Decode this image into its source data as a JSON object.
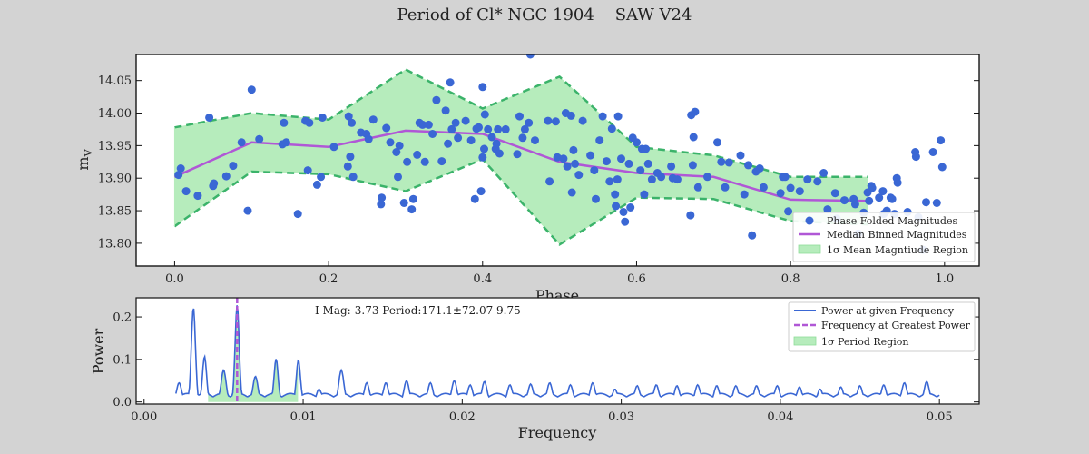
{
  "figure": {
    "title": "Period of Cl* NGC 1904    SAW V24",
    "background": "#d3d3d3"
  },
  "chart_data": [
    {
      "type": "scatter",
      "xlabel": "Phase",
      "ylabel": "m_V",
      "xlim": [
        -0.05,
        1.045
      ],
      "ylim": [
        13.765,
        14.09
      ],
      "xticks": [
        0.0,
        0.2,
        0.4,
        0.6,
        0.8,
        1.0
      ],
      "yticks": [
        13.8,
        13.85,
        13.9,
        13.95,
        14.0,
        14.05
      ],
      "legend_position": "lower-right",
      "legend": [
        "Phase Folded Magnitudes",
        "Median Binned Magnitudes",
        "1σ Mean Magntiude Region"
      ],
      "colors": {
        "points": "#3a67d4",
        "median": "#b057d6",
        "band_fill": "#b6ecbc",
        "band_edge": "#3bb36a"
      },
      "points": [
        [
          0.005,
          13.905
        ],
        [
          0.008,
          13.915
        ],
        [
          0.015,
          13.88
        ],
        [
          0.03,
          13.873
        ],
        [
          0.045,
          13.993
        ],
        [
          0.05,
          13.888
        ],
        [
          0.051,
          13.892
        ],
        [
          0.067,
          13.903
        ],
        [
          0.076,
          13.919
        ],
        [
          0.087,
          13.955
        ],
        [
          0.095,
          13.85
        ],
        [
          0.1,
          14.036
        ],
        [
          0.11,
          13.96
        ],
        [
          0.14,
          13.952
        ],
        [
          0.142,
          13.985
        ],
        [
          0.145,
          13.955
        ],
        [
          0.16,
          13.845
        ],
        [
          0.17,
          13.988
        ],
        [
          0.173,
          13.912
        ],
        [
          0.175,
          13.985
        ],
        [
          0.185,
          13.89
        ],
        [
          0.19,
          13.902
        ],
        [
          0.192,
          13.993
        ],
        [
          0.207,
          13.948
        ],
        [
          0.225,
          13.918
        ],
        [
          0.226,
          13.995
        ],
        [
          0.228,
          13.933
        ],
        [
          0.23,
          13.985
        ],
        [
          0.232,
          13.902
        ],
        [
          0.242,
          13.97
        ],
        [
          0.249,
          13.968
        ],
        [
          0.252,
          13.96
        ],
        [
          0.258,
          13.99
        ],
        [
          0.268,
          13.86
        ],
        [
          0.269,
          13.87
        ],
        [
          0.275,
          13.977
        ],
        [
          0.28,
          13.955
        ],
        [
          0.288,
          13.94
        ],
        [
          0.29,
          13.902
        ],
        [
          0.292,
          13.95
        ],
        [
          0.298,
          13.862
        ],
        [
          0.302,
          13.925
        ],
        [
          0.308,
          13.852
        ],
        [
          0.31,
          13.868
        ],
        [
          0.315,
          13.936
        ],
        [
          0.318,
          13.985
        ],
        [
          0.322,
          13.982
        ],
        [
          0.325,
          13.925
        ],
        [
          0.33,
          13.982
        ],
        [
          0.335,
          13.968
        ],
        [
          0.34,
          14.02
        ],
        [
          0.347,
          13.926
        ],
        [
          0.352,
          14.004
        ],
        [
          0.355,
          13.953
        ],
        [
          0.358,
          14.047
        ],
        [
          0.36,
          13.975
        ],
        [
          0.365,
          13.985
        ],
        [
          0.368,
          13.962
        ],
        [
          0.378,
          13.988
        ],
        [
          0.385,
          13.958
        ],
        [
          0.39,
          13.868
        ],
        [
          0.392,
          13.976
        ],
        [
          0.395,
          13.978
        ],
        [
          0.398,
          13.88
        ],
        [
          0.4,
          14.04
        ],
        [
          0.4,
          13.932
        ],
        [
          0.402,
          13.945
        ],
        [
          0.403,
          13.998
        ],
        [
          0.407,
          13.975
        ],
        [
          0.412,
          13.963
        ],
        [
          0.417,
          13.945
        ],
        [
          0.418,
          13.953
        ],
        [
          0.42,
          13.975
        ],
        [
          0.422,
          13.938
        ],
        [
          0.43,
          13.975
        ],
        [
          0.445,
          13.937
        ],
        [
          0.448,
          13.995
        ],
        [
          0.452,
          13.962
        ],
        [
          0.455,
          13.975
        ],
        [
          0.46,
          13.985
        ],
        [
          0.462,
          14.09
        ],
        [
          0.468,
          13.958
        ],
        [
          0.485,
          13.988
        ],
        [
          0.487,
          13.895
        ],
        [
          0.495,
          13.987
        ],
        [
          0.497,
          13.932
        ],
        [
          0.505,
          13.93
        ],
        [
          0.508,
          14.0
        ],
        [
          0.51,
          13.918
        ],
        [
          0.515,
          13.996
        ],
        [
          0.516,
          13.878
        ],
        [
          0.518,
          13.943
        ],
        [
          0.52,
          13.922
        ],
        [
          0.525,
          13.905
        ],
        [
          0.53,
          13.988
        ],
        [
          0.54,
          13.935
        ],
        [
          0.545,
          13.912
        ],
        [
          0.547,
          13.868
        ],
        [
          0.552,
          13.958
        ],
        [
          0.556,
          13.995
        ],
        [
          0.561,
          13.926
        ],
        [
          0.565,
          13.895
        ],
        [
          0.568,
          13.976
        ],
        [
          0.572,
          13.875
        ],
        [
          0.573,
          13.857
        ],
        [
          0.575,
          13.898
        ],
        [
          0.576,
          13.995
        ],
        [
          0.58,
          13.93
        ],
        [
          0.583,
          13.848
        ],
        [
          0.585,
          13.833
        ],
        [
          0.59,
          13.922
        ],
        [
          0.592,
          13.855
        ],
        [
          0.595,
          13.962
        ],
        [
          0.6,
          13.955
        ],
        [
          0.605,
          13.912
        ],
        [
          0.607,
          13.945
        ],
        [
          0.61,
          13.875
        ],
        [
          0.612,
          13.945
        ],
        [
          0.615,
          13.922
        ],
        [
          0.62,
          13.898
        ],
        [
          0.627,
          13.908
        ],
        [
          0.632,
          13.902
        ],
        [
          0.645,
          13.918
        ],
        [
          0.647,
          13.9
        ],
        [
          0.653,
          13.898
        ],
        [
          0.67,
          13.843
        ],
        [
          0.671,
          13.997
        ],
        [
          0.673,
          13.92
        ],
        [
          0.674,
          13.963
        ],
        [
          0.676,
          14.002
        ],
        [
          0.68,
          13.886
        ],
        [
          0.692,
          13.902
        ],
        [
          0.705,
          13.955
        ],
        [
          0.71,
          13.925
        ],
        [
          0.715,
          13.886
        ],
        [
          0.72,
          13.924
        ],
        [
          0.735,
          13.935
        ],
        [
          0.74,
          13.875
        ],
        [
          0.745,
          13.92
        ],
        [
          0.75,
          13.812
        ],
        [
          0.755,
          13.91
        ],
        [
          0.76,
          13.915
        ],
        [
          0.765,
          13.886
        ],
        [
          0.787,
          13.877
        ],
        [
          0.79,
          13.902
        ],
        [
          0.793,
          13.902
        ],
        [
          0.797,
          13.849
        ],
        [
          0.8,
          13.885
        ],
        [
          0.812,
          13.88
        ],
        [
          0.822,
          13.898
        ],
        [
          0.835,
          13.895
        ],
        [
          0.843,
          13.908
        ],
        [
          0.848,
          13.852
        ],
        [
          0.858,
          13.877
        ],
        [
          0.86,
          13.838
        ],
        [
          0.87,
          13.866
        ],
        [
          0.882,
          13.868
        ],
        [
          0.884,
          13.86
        ],
        [
          0.888,
          13.815
        ],
        [
          0.895,
          13.847
        ],
        [
          0.9,
          13.878
        ],
        [
          0.902,
          13.865
        ],
        [
          0.905,
          13.888
        ],
        [
          0.906,
          13.885
        ],
        [
          0.915,
          13.87
        ],
        [
          0.92,
          13.88
        ],
        [
          0.921,
          13.845
        ],
        [
          0.925,
          13.85
        ],
        [
          0.93,
          13.87
        ],
        [
          0.932,
          13.868
        ],
        [
          0.935,
          13.845
        ],
        [
          0.938,
          13.9
        ],
        [
          0.939,
          13.893
        ],
        [
          0.952,
          13.848
        ],
        [
          0.962,
          13.94
        ],
        [
          0.963,
          13.933
        ],
        [
          0.966,
          13.84
        ],
        [
          0.972,
          13.79
        ],
        [
          0.976,
          13.863
        ],
        [
          0.985,
          13.94
        ],
        [
          0.99,
          13.862
        ],
        [
          0.995,
          13.958
        ],
        [
          0.997,
          13.917
        ]
      ],
      "median_x": [
        0.0,
        0.1,
        0.2,
        0.3,
        0.4,
        0.5,
        0.6,
        0.7,
        0.8,
        0.9
      ],
      "median_y": [
        13.902,
        13.955,
        13.948,
        13.973,
        13.968,
        13.925,
        13.908,
        13.902,
        13.867,
        13.865
      ],
      "band_upper": [
        13.978,
        14.0,
        13.99,
        14.067,
        14.007,
        14.056,
        13.948,
        13.935,
        13.902,
        13.902
      ],
      "band_lower": [
        13.826,
        13.91,
        13.906,
        13.88,
        13.929,
        13.798,
        13.87,
        13.868,
        13.834,
        13.829
      ]
    },
    {
      "type": "line",
      "xlabel": "Frequency",
      "ylabel": "Power",
      "xlim": [
        -0.0005,
        0.0525
      ],
      "ylim": [
        -0.005,
        0.245
      ],
      "xticks": [
        0.0,
        0.01,
        0.02,
        0.03,
        0.04,
        0.05
      ],
      "xtick_labels": [
        "0.00",
        "0.01",
        "0.02",
        "0.03",
        "0.04",
        "0.05"
      ],
      "yticks": [
        0.0,
        0.1,
        0.2
      ],
      "ytick_labels": [
        "0.0",
        "0.1",
        "0.2"
      ],
      "annotation": "I Mag:-3.73 Period:171.1±72.07 9.75",
      "legend_position": "top-right",
      "legend": [
        "Power at given Frequency",
        "Frequency at Greatest Power",
        "1σ Period Region"
      ],
      "colors": {
        "line": "#3a67d4",
        "peak": "#b057d6",
        "region": "#b6ecbc"
      },
      "peak_frequency": 0.00585,
      "region": [
        0.004,
        0.0097
      ],
      "frequency_range": [
        0.002,
        0.05
      ],
      "peaks": [
        [
          0.0022,
          0.045
        ],
        [
          0.0031,
          0.222
        ],
        [
          0.0038,
          0.107
        ],
        [
          0.005,
          0.075
        ],
        [
          0.00585,
          0.228
        ],
        [
          0.007,
          0.06
        ],
        [
          0.0083,
          0.101
        ],
        [
          0.0097,
          0.098
        ],
        [
          0.011,
          0.03
        ],
        [
          0.0124,
          0.075
        ],
        [
          0.014,
          0.045
        ],
        [
          0.0152,
          0.045
        ],
        [
          0.0165,
          0.05
        ],
        [
          0.018,
          0.045
        ],
        [
          0.0195,
          0.05
        ],
        [
          0.0205,
          0.04
        ],
        [
          0.0214,
          0.048
        ],
        [
          0.023,
          0.04
        ],
        [
          0.0243,
          0.042
        ],
        [
          0.0255,
          0.045
        ],
        [
          0.0268,
          0.04
        ],
        [
          0.0282,
          0.045
        ],
        [
          0.0296,
          0.03
        ],
        [
          0.031,
          0.038
        ],
        [
          0.0322,
          0.04
        ],
        [
          0.0335,
          0.038
        ],
        [
          0.0348,
          0.04
        ],
        [
          0.036,
          0.038
        ],
        [
          0.0372,
          0.038
        ],
        [
          0.0385,
          0.038
        ],
        [
          0.0398,
          0.038
        ],
        [
          0.0412,
          0.035
        ],
        [
          0.0425,
          0.03
        ],
        [
          0.0438,
          0.035
        ],
        [
          0.045,
          0.038
        ],
        [
          0.0465,
          0.04
        ],
        [
          0.0478,
          0.045
        ],
        [
          0.0492,
          0.048
        ]
      ]
    }
  ]
}
